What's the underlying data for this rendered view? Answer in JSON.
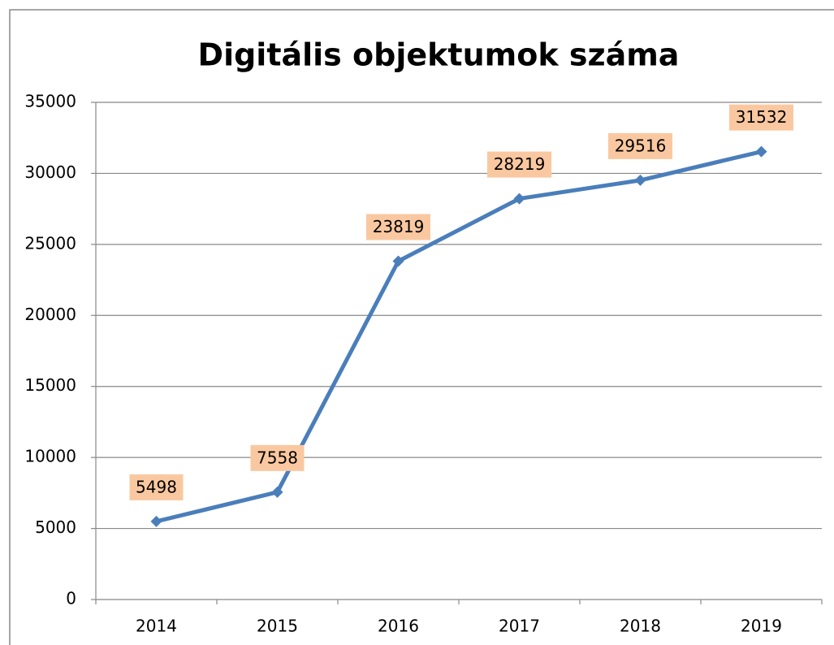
{
  "chart_data": {
    "type": "line",
    "title": "Digitális objektumok száma",
    "categories": [
      "2014",
      "2015",
      "2016",
      "2017",
      "2018",
      "2019"
    ],
    "series": [
      {
        "name": "Digitális objektumok száma",
        "color": "#4a7ebb",
        "values": [
          5498,
          7558,
          23819,
          28219,
          29516,
          31532
        ]
      }
    ],
    "ylim": [
      0,
      35000
    ],
    "yticks": [
      0,
      5000,
      10000,
      15000,
      20000,
      25000,
      30000,
      35000
    ],
    "grid": true,
    "data_labels": true,
    "label_color": "#fac8a0"
  }
}
